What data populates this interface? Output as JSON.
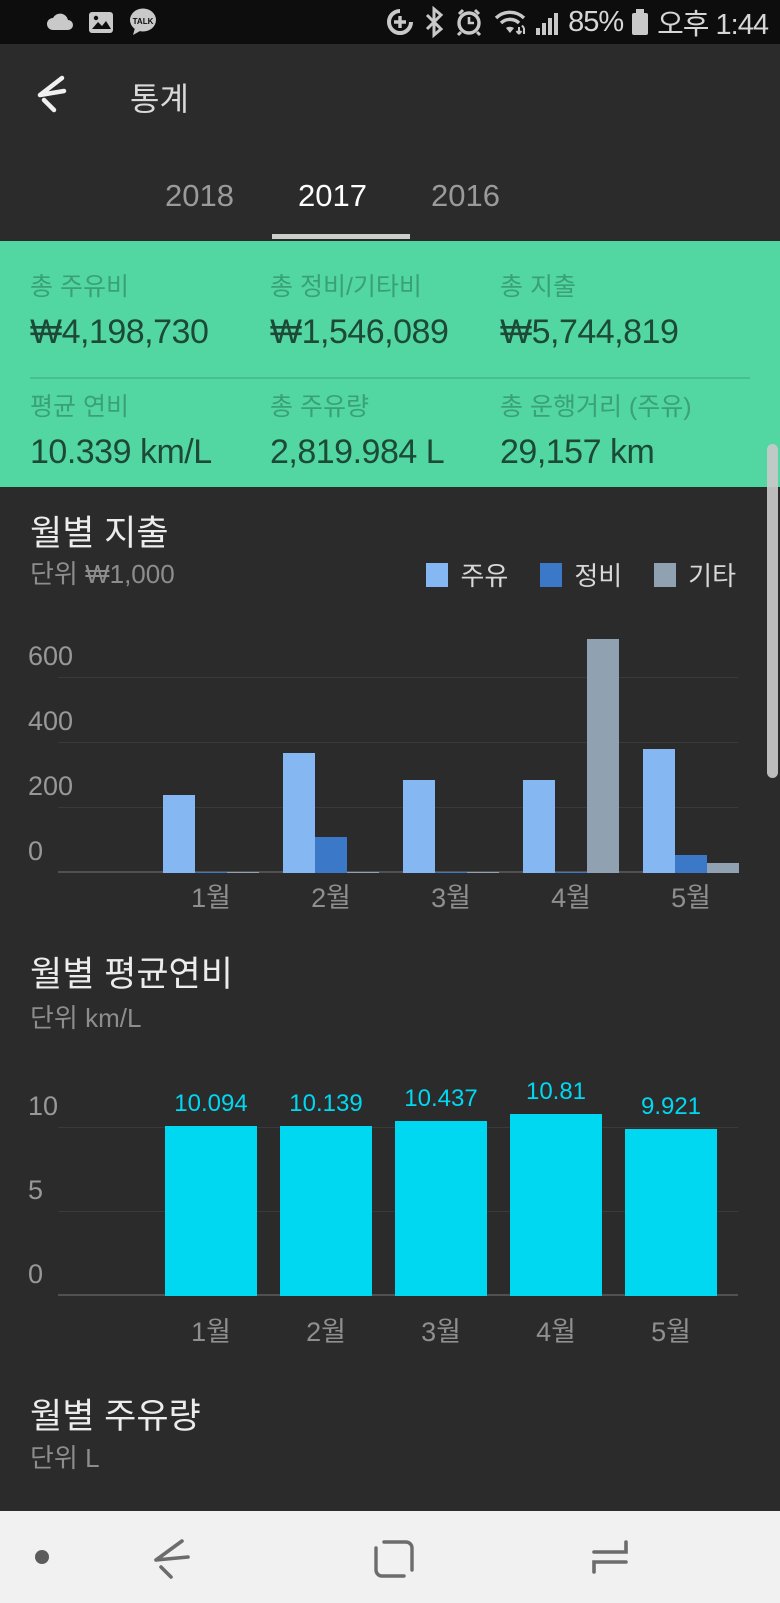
{
  "status_bar": {
    "time": "오후 1:44",
    "battery": "85%",
    "left_icons": [
      "cloud-icon",
      "gallery-icon",
      "kakaotalk-icon"
    ],
    "right_icons": [
      "data-saver-icon",
      "bluetooth-icon",
      "alarm-icon",
      "wifi-icon",
      "signal-icon",
      "battery-icon"
    ],
    "kakaotalk_text": "TALK"
  },
  "header": {
    "title": "통계"
  },
  "tabs": [
    {
      "label": "2018",
      "active": false
    },
    {
      "label": "2017",
      "active": true
    },
    {
      "label": "2016",
      "active": false
    }
  ],
  "summary": {
    "items": [
      {
        "label": "총 주유비",
        "value": "₩4,198,730"
      },
      {
        "label": "총 정비/기타비",
        "value": "₩1,546,089"
      },
      {
        "label": "총 지출",
        "value": "₩5,744,819"
      },
      {
        "label": "평균 연비",
        "value": "10.339 km/L"
      },
      {
        "label": "총 주유량",
        "value": "2,819.984 L"
      },
      {
        "label": "총 운행거리 (주유)",
        "value": "29,157 km"
      }
    ]
  },
  "chart_data": [
    {
      "type": "bar",
      "title": "월별 지출",
      "subtitle": "단위 ₩1,000",
      "categories": [
        "1월",
        "2월",
        "3월",
        "4월",
        "5월"
      ],
      "series": [
        {
          "name": "주유",
          "color": "#85b8f3",
          "values": [
            240,
            370,
            285,
            285,
            380
          ]
        },
        {
          "name": "정비",
          "color": "#3c78c8",
          "values": [
            2,
            110,
            2,
            2,
            55
          ]
        },
        {
          "name": "기타",
          "color": "#90a1b2",
          "values": [
            2,
            3,
            2,
            720,
            30
          ]
        }
      ],
      "yticks": [
        0,
        200,
        400,
        600
      ],
      "ylim": [
        0,
        780
      ],
      "grid": true,
      "legend_position": "top-right"
    },
    {
      "type": "bar",
      "title": "월별 평균연비",
      "subtitle": "단위 km/L",
      "categories": [
        "1월",
        "2월",
        "3월",
        "4월",
        "5월"
      ],
      "series": [
        {
          "name": "평균연비",
          "color": "#00d8f2",
          "values": [
            10.094,
            10.139,
            10.437,
            10.81,
            9.921
          ]
        }
      ],
      "value_labels": [
        "10.094",
        "10.139",
        "10.437",
        "10.81",
        "9.921"
      ],
      "yticks": [
        0,
        5,
        10
      ],
      "ylim": [
        0,
        13.5
      ],
      "grid": true,
      "legend_position": "none"
    },
    {
      "type": "bar",
      "title": "월별 주유량",
      "subtitle": "단위 L"
    }
  ],
  "colors": {
    "summary_bg": "#52d7a2",
    "summary_divider": "#47c08f",
    "app_bg": "#2b2b2b",
    "status_bar_bg": "#0d0d0d",
    "nav_bar_bg": "#f1f1f1",
    "tab_underline": "#cbcfcb",
    "fuel_bar": "#00d8f2"
  },
  "nav_bar": {
    "items": [
      "hide-dot",
      "back",
      "home",
      "recents"
    ]
  }
}
